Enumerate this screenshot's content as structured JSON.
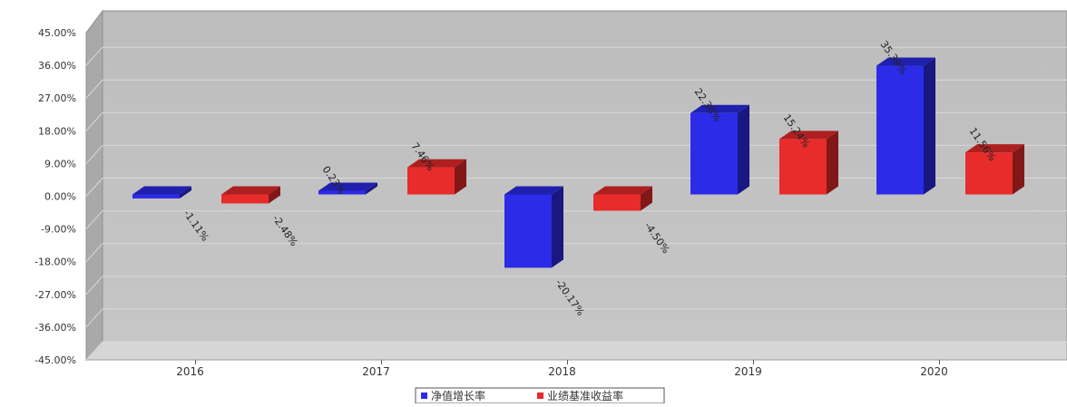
{
  "chart_data": {
    "type": "bar",
    "categories": [
      "2016",
      "2017",
      "2018",
      "2019",
      "2020"
    ],
    "series": [
      {
        "name": "净值增长率",
        "color": "#2b2be8",
        "values": [
          -1.11,
          0.23,
          -20.17,
          22.38,
          35.39
        ],
        "labels": [
          "-1.11%",
          "0.23%",
          "-20.17%",
          "22.38%",
          "35.39%"
        ]
      },
      {
        "name": "业绩基准收益率",
        "color": "#e82b2b",
        "values": [
          -2.48,
          7.46,
          -4.5,
          15.24,
          11.56
        ],
        "labels": [
          "-2.48%",
          "7.46%",
          "-4.50%",
          "15.24%",
          "11.56%"
        ]
      }
    ],
    "ylim": [
      -45,
      45
    ],
    "yticks": [
      45,
      36,
      27,
      18,
      9,
      0,
      -9,
      -18,
      -27,
      -36,
      -45
    ],
    "ytick_labels": [
      "45.00%",
      "36.00%",
      "27.00%",
      "18.00%",
      "9.00%",
      "0.00%",
      "-9.00%",
      "-18.00%",
      "-27.00%",
      "-36.00%",
      "-45.00%"
    ],
    "grid": true,
    "legend_position": "bottom-center",
    "bar_style": "3d"
  }
}
